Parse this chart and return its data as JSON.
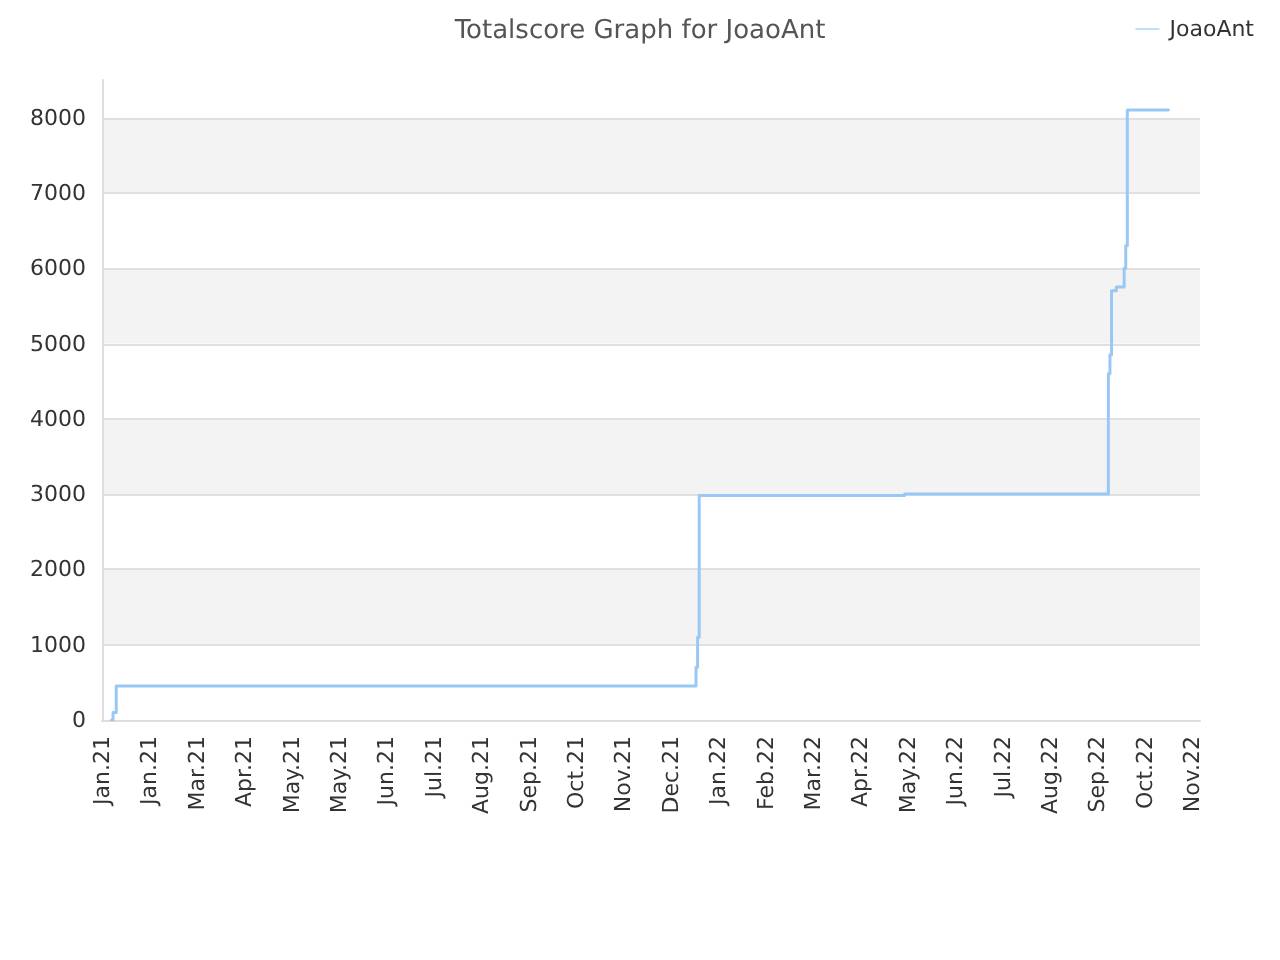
{
  "chart_data": {
    "type": "step",
    "title": "Totalscore Graph for JoaoAnt",
    "x": [
      "2021-01-07",
      "2021-01-08",
      "2021-01-10",
      "2022-01-10",
      "2022-01-12",
      "2022-01-13",
      "2022-01-14",
      "2022-05-23",
      "2022-05-24",
      "2022-09-29",
      "2022-09-30",
      "2022-10-01",
      "2022-10-02",
      "2022-10-05",
      "2022-10-10",
      "2022-10-11",
      "2022-10-12",
      "2022-11-07"
    ],
    "series": [
      {
        "name": "JoaoAnt",
        "color": "#99c8f5",
        "values": [
          0,
          100,
          450,
          450,
          700,
          1100,
          2980,
          2980,
          3000,
          3000,
          4600,
          4850,
          5700,
          5750,
          6000,
          6300,
          8100,
          8100
        ]
      }
    ],
    "xlim": [
      "2021-01-01",
      "2022-11-27"
    ],
    "xticks": [
      {
        "value": "2021-01-01",
        "label": "Jan.21"
      },
      {
        "value": "2021-01-31",
        "label": "Jan.21"
      },
      {
        "value": "2021-03-02",
        "label": "Mar.21"
      },
      {
        "value": "2021-04-01",
        "label": "Apr.21"
      },
      {
        "value": "2021-05-01",
        "label": "May.21"
      },
      {
        "value": "2021-05-31",
        "label": "May.21"
      },
      {
        "value": "2021-06-30",
        "label": "Jun.21"
      },
      {
        "value": "2021-07-30",
        "label": "Jul.21"
      },
      {
        "value": "2021-08-29",
        "label": "Aug.21"
      },
      {
        "value": "2021-09-28",
        "label": "Sep.21"
      },
      {
        "value": "2021-10-28",
        "label": "Oct.21"
      },
      {
        "value": "2021-11-27",
        "label": "Nov.21"
      },
      {
        "value": "2021-12-27",
        "label": "Dec.21"
      },
      {
        "value": "2022-01-26",
        "label": "Jan.22"
      },
      {
        "value": "2022-02-25",
        "label": "Feb.22"
      },
      {
        "value": "2022-03-27",
        "label": "Mar.22"
      },
      {
        "value": "2022-04-26",
        "label": "Apr.22"
      },
      {
        "value": "2022-05-26",
        "label": "May.22"
      },
      {
        "value": "2022-06-25",
        "label": "Jun.22"
      },
      {
        "value": "2022-07-25",
        "label": "Jul.22"
      },
      {
        "value": "2022-08-24",
        "label": "Aug.22"
      },
      {
        "value": "2022-09-23",
        "label": "Sep.22"
      },
      {
        "value": "2022-10-23",
        "label": "Oct.22"
      },
      {
        "value": "2022-11-22",
        "label": "Nov.22"
      }
    ],
    "ylim": [
      0,
      8500
    ],
    "yticks": [
      0,
      1000,
      2000,
      3000,
      4000,
      5000,
      6000,
      7000,
      8000
    ],
    "grid": "y",
    "legend": "top right",
    "marker": "none",
    "line_style": "solid"
  }
}
